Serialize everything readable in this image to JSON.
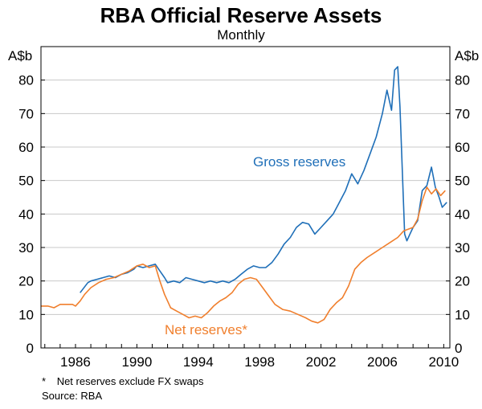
{
  "chart_data": {
    "type": "line",
    "title": "RBA Official Reserve Assets",
    "subtitle": "Monthly",
    "ylabel_left": "A$b",
    "ylabel_right": "A$b",
    "xlim": [
      1983.75,
      2010.4
    ],
    "ylim": [
      0,
      90
    ],
    "yticks": [
      0,
      10,
      20,
      30,
      40,
      50,
      60,
      70,
      80
    ],
    "xticks": [
      1986,
      1990,
      1994,
      1998,
      2002,
      2006,
      2010
    ],
    "grid": true,
    "series": [
      {
        "name": "Gross reserves",
        "label": "Gross reserves",
        "color": "#1f6fb8",
        "x": [
          1986.3,
          1986.8,
          1987.0,
          1987.4,
          1987.8,
          1988.2,
          1988.6,
          1989.0,
          1989.4,
          1989.8,
          1990.0,
          1990.4,
          1990.8,
          1991.2,
          1991.5,
          1991.8,
          1992.0,
          1992.4,
          1992.8,
          1993.2,
          1993.6,
          1994.0,
          1994.4,
          1994.8,
          1995.2,
          1995.6,
          1996.0,
          1996.4,
          1996.8,
          1997.2,
          1997.6,
          1998.0,
          1998.4,
          1998.8,
          1999.2,
          1999.6,
          2000.0,
          2000.4,
          2000.8,
          2001.2,
          2001.6,
          2002.0,
          2002.4,
          2002.8,
          2003.2,
          2003.6,
          2004.0,
          2004.4,
          2004.8,
          2005.2,
          2005.6,
          2006.0,
          2006.3,
          2006.6,
          2006.8,
          2007.0,
          2007.15,
          2007.3,
          2007.45,
          2007.6,
          2007.8,
          2008.0,
          2008.3,
          2008.6,
          2008.9,
          2009.2,
          2009.45,
          2009.7,
          2009.9,
          2010.2
        ],
        "values": [
          16.5,
          19.5,
          20,
          20.5,
          21,
          21.5,
          21,
          22,
          22.5,
          23.5,
          24.5,
          24,
          24.5,
          25,
          23,
          21,
          19.5,
          20,
          19.5,
          21,
          20.5,
          20,
          19.5,
          20,
          19.5,
          20,
          19.5,
          20.5,
          22,
          23.5,
          24.5,
          24,
          24,
          25.5,
          28,
          31,
          33,
          36,
          37.5,
          37,
          34,
          36,
          38,
          40,
          43.5,
          47,
          52,
          49,
          53,
          58,
          63,
          70,
          77,
          71,
          83,
          84,
          72,
          53,
          34,
          32,
          34,
          36,
          38,
          47,
          48.5,
          54,
          48,
          45,
          42,
          43.5
        ]
      },
      {
        "name": "Net reserves*",
        "label": "Net reserves*",
        "color": "#f07f2d",
        "x": [
          1983.75,
          1984.2,
          1984.6,
          1985.0,
          1985.4,
          1985.8,
          1986.0,
          1986.3,
          1986.6,
          1987.0,
          1987.5,
          1988.0,
          1988.5,
          1989.0,
          1989.5,
          1990.0,
          1990.4,
          1990.8,
          1991.2,
          1991.5,
          1991.8,
          1992.2,
          1992.6,
          1993.0,
          1993.4,
          1993.8,
          1994.2,
          1994.6,
          1995.0,
          1995.4,
          1995.8,
          1996.2,
          1996.6,
          1997.0,
          1997.4,
          1997.8,
          1998.2,
          1998.6,
          1999.0,
          1999.5,
          2000.0,
          2000.5,
          2001.0,
          2001.4,
          2001.8,
          2002.2,
          2002.6,
          2003.0,
          2003.4,
          2003.8,
          2004.2,
          2004.6,
          2005.0,
          2005.5,
          2006.0,
          2006.5,
          2007.0,
          2007.4,
          2007.7,
          2008.0,
          2008.3,
          2008.6,
          2008.9,
          2009.2,
          2009.5,
          2009.8,
          2010.1
        ],
        "values": [
          12.5,
          12.5,
          12,
          13,
          13,
          13,
          12.5,
          14,
          16,
          18,
          19.5,
          20.5,
          21,
          22,
          23,
          24.5,
          25,
          24,
          24.5,
          20,
          16,
          12,
          11,
          10,
          9,
          9.5,
          9,
          10.5,
          12.5,
          14,
          15,
          16.5,
          19,
          20.5,
          21,
          20.5,
          18,
          15.5,
          13,
          11.5,
          11,
          10,
          9,
          8,
          7.5,
          8.5,
          11.5,
          13.5,
          15,
          18.5,
          23.5,
          25.5,
          27,
          28.5,
          30,
          31.5,
          33,
          35,
          35.5,
          36,
          38.5,
          44,
          48,
          46,
          47.5,
          45.5,
          47
        ]
      }
    ]
  },
  "footnote": {
    "marker": "*",
    "note": "Net reserves exclude FX swaps",
    "source": "Source: RBA"
  }
}
